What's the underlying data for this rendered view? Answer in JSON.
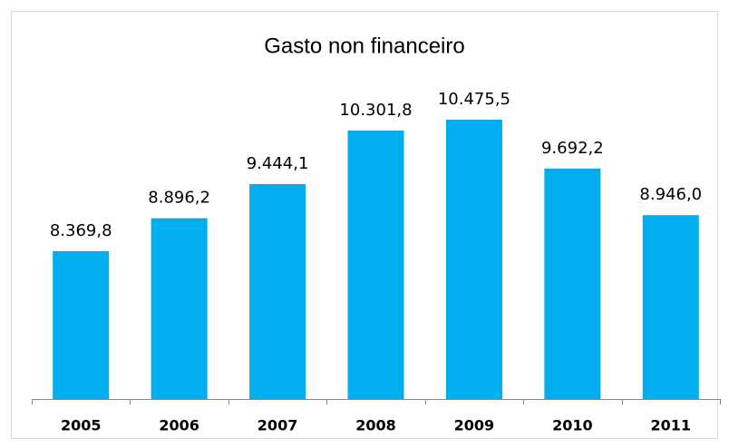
{
  "chart_data": {
    "type": "bar",
    "title": "Gasto non financeiro",
    "categories": [
      "2005",
      "2006",
      "2007",
      "2008",
      "2009",
      "2010",
      "2011"
    ],
    "values": [
      8369.8,
      8896.2,
      9444.1,
      10301.8,
      10475.5,
      9692.2,
      8946.0
    ],
    "value_labels": [
      "8.369,8",
      "8.896,2",
      "9.444,1",
      "10.301,8",
      "10.475,5",
      "9.692,2",
      "8.946,0"
    ],
    "color": "#00aeef",
    "ylim": [
      6000,
      12000
    ]
  }
}
